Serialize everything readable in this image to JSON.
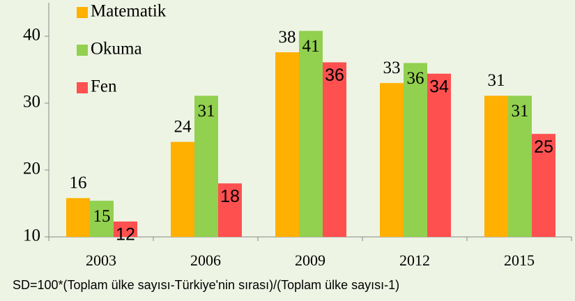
{
  "chart_data": {
    "type": "bar",
    "categories": [
      "2003",
      "2006",
      "2009",
      "2012",
      "2015"
    ],
    "series": [
      {
        "name": "Matematik",
        "color": "#ffb000",
        "values": [
          15.8,
          24.2,
          37.6,
          33.0,
          31.1
        ],
        "value_labels": [
          "16",
          "24",
          "38",
          "33",
          "31"
        ]
      },
      {
        "name": "Okuma",
        "color": "#92d050",
        "values": [
          15.4,
          31.1,
          40.8,
          36.0,
          31.1
        ],
        "value_labels": [
          "15",
          "31",
          "41",
          "36",
          "31"
        ]
      },
      {
        "name": "Fen",
        "color": "#ff5050",
        "values": [
          12.3,
          18.0,
          36.1,
          34.4,
          25.4
        ],
        "value_labels": [
          "12",
          "18",
          "36",
          "34",
          "25"
        ]
      }
    ],
    "ylim": [
      10,
      45
    ],
    "yticks": [
      10,
      20,
      30,
      40
    ],
    "grid": false,
    "legend": "top-left",
    "footnote": "SD=100*(Toplam ülke sayısı-Türkiye'nin sırası)/(Toplam ülke sayısı-1)"
  }
}
